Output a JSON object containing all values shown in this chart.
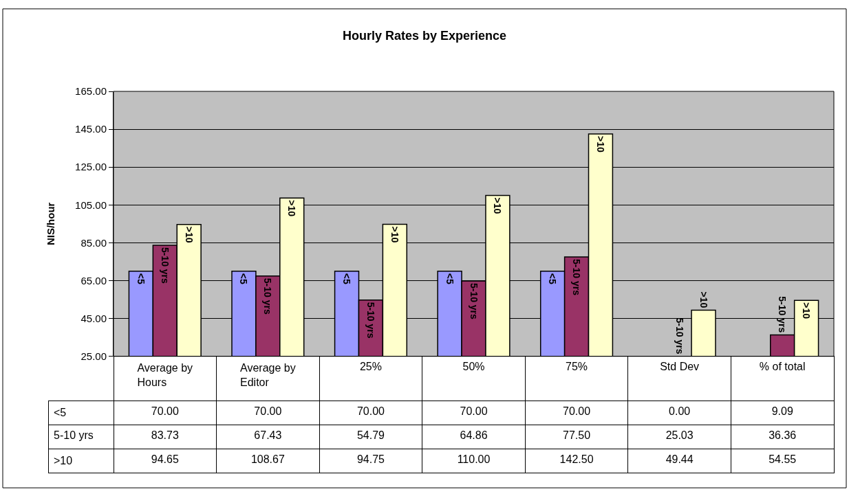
{
  "chart_data": {
    "type": "bar",
    "title": "Hourly Rates by Experience",
    "ylabel": "NIS/hour",
    "categories": [
      "Average by Hours",
      "Average by Editor",
      "25%",
      "50%",
      "75%",
      "Std Dev",
      "% of total"
    ],
    "series": [
      {
        "name": "<5",
        "color": "#9999ff",
        "values": [
          70.0,
          70.0,
          70.0,
          70.0,
          70.0,
          null,
          null
        ],
        "value_labels": [
          "70.00",
          "70.00",
          "70.00",
          "70.00",
          "70.00",
          "0.00",
          "9.09"
        ]
      },
      {
        "name": "5-10 yrs",
        "color": "#993366",
        "values": [
          83.73,
          67.43,
          54.79,
          64.86,
          77.5,
          25.03,
          36.36
        ],
        "value_labels": [
          "83.73",
          "67.43",
          "54.79",
          "64.86",
          "77.50",
          "25.03",
          "36.36"
        ]
      },
      {
        "name": ">10",
        "color": "#ffffcc",
        "values": [
          94.65,
          108.67,
          94.75,
          110.0,
          142.5,
          49.44,
          54.55
        ],
        "value_labels": [
          "94.65",
          "108.67",
          "94.75",
          "110.00",
          "142.50",
          "49.44",
          "54.55"
        ]
      }
    ],
    "ylim": [
      25,
      165
    ],
    "yticks": [
      {
        "value": 25,
        "label": "25.00"
      },
      {
        "value": 45,
        "label": "45.00"
      },
      {
        "value": 65,
        "label": "65.00"
      },
      {
        "value": 85,
        "label": "85.00"
      },
      {
        "value": 105,
        "label": "105.00"
      },
      {
        "value": 125,
        "label": "125.00"
      },
      {
        "value": 145,
        "label": "145.00"
      },
      {
        "value": 165,
        "label": "165.00"
      }
    ],
    "grid": "y",
    "legend": false
  }
}
